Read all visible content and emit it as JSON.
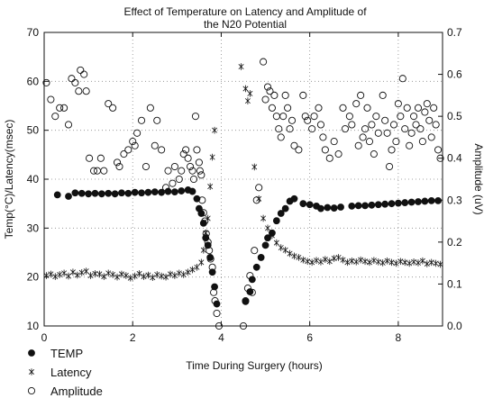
{
  "chart_data": {
    "type": "scatter",
    "title": "Effect of Temperature on Latency and Amplitude of",
    "subtitle": "the N20 Potential",
    "xlabel": "Time During Surgery (hours)",
    "ylabel_left": "Temp(°C)/Latency(msec)",
    "ylabel_right": "Amplitude (uV)",
    "xlim": [
      0,
      9
    ],
    "ylim_left": [
      10,
      70
    ],
    "ylim_right": [
      0.0,
      0.7
    ],
    "x_ticks": [
      "0",
      "2",
      "4",
      "6",
      "8"
    ],
    "y_left_ticks": [
      "10",
      "20",
      "30",
      "40",
      "50",
      "60",
      "70"
    ],
    "y_right_ticks": [
      "0.0",
      "0.1",
      "0.2",
      "0.3",
      "0.4",
      "0.5",
      "0.6",
      "0.7"
    ],
    "grid": "dotted",
    "legend_position": "bottom-left",
    "series": [
      {
        "name": "TEMP",
        "axis": "left",
        "marker": "filled-circle",
        "points": [
          [
            0.3,
            36.8
          ],
          [
            0.55,
            36.5
          ],
          [
            0.7,
            37.2
          ],
          [
            0.85,
            37.1
          ],
          [
            1.0,
            37.0
          ],
          [
            1.15,
            37.1
          ],
          [
            1.3,
            37.0
          ],
          [
            1.45,
            37.1
          ],
          [
            1.6,
            37.0
          ],
          [
            1.75,
            37.2
          ],
          [
            1.9,
            37.1
          ],
          [
            2.05,
            37.3
          ],
          [
            2.2,
            37.2
          ],
          [
            2.35,
            37.3
          ],
          [
            2.5,
            37.4
          ],
          [
            2.65,
            37.3
          ],
          [
            2.8,
            37.5
          ],
          [
            2.95,
            37.4
          ],
          [
            3.1,
            37.6
          ],
          [
            3.25,
            37.8
          ],
          [
            3.35,
            37.5
          ],
          [
            3.45,
            36.0
          ],
          [
            3.5,
            34.0
          ],
          [
            3.55,
            33.0
          ],
          [
            3.6,
            31.0
          ],
          [
            3.65,
            28.0
          ],
          [
            3.7,
            26.5
          ],
          [
            3.75,
            24.0
          ],
          [
            3.8,
            21.0
          ],
          [
            3.85,
            18.0
          ],
          [
            3.9,
            14.5
          ],
          [
            4.55,
            15.0
          ],
          [
            4.65,
            17.0
          ],
          [
            4.7,
            19.5
          ],
          [
            4.8,
            22.0
          ],
          [
            4.9,
            24.0
          ],
          [
            5.0,
            26.5
          ],
          [
            5.05,
            28.0
          ],
          [
            5.15,
            29.0
          ],
          [
            5.25,
            31.5
          ],
          [
            5.35,
            33.0
          ],
          [
            5.45,
            34.0
          ],
          [
            5.55,
            35.5
          ],
          [
            5.65,
            36.0
          ],
          [
            5.85,
            35.0
          ],
          [
            6.0,
            34.8
          ],
          [
            6.15,
            34.5
          ],
          [
            6.25,
            34.0
          ],
          [
            6.4,
            34.2
          ],
          [
            6.55,
            34.1
          ],
          [
            6.7,
            34.3
          ],
          [
            6.95,
            34.5
          ],
          [
            7.1,
            34.6
          ],
          [
            7.25,
            34.6
          ],
          [
            7.4,
            34.7
          ],
          [
            7.55,
            34.8
          ],
          [
            7.7,
            34.9
          ],
          [
            7.85,
            35.0
          ],
          [
            8.0,
            35.1
          ],
          [
            8.15,
            35.2
          ],
          [
            8.3,
            35.3
          ],
          [
            8.45,
            35.4
          ],
          [
            8.6,
            35.5
          ],
          [
            8.75,
            35.6
          ],
          [
            8.9,
            35.6
          ]
        ]
      },
      {
        "name": "Latency",
        "axis": "left",
        "marker": "asterisk",
        "points": [
          [
            0.05,
            20.3
          ],
          [
            0.15,
            20.6
          ],
          [
            0.25,
            20.1
          ],
          [
            0.35,
            20.5
          ],
          [
            0.45,
            20.8
          ],
          [
            0.55,
            20.2
          ],
          [
            0.65,
            21.0
          ],
          [
            0.75,
            20.4
          ],
          [
            0.85,
            20.9
          ],
          [
            0.95,
            21.2
          ],
          [
            1.05,
            20.3
          ],
          [
            1.15,
            20.7
          ],
          [
            1.25,
            20.6
          ],
          [
            1.35,
            20.1
          ],
          [
            1.45,
            20.8
          ],
          [
            1.55,
            20.5
          ],
          [
            1.65,
            20.0
          ],
          [
            1.75,
            20.6
          ],
          [
            1.85,
            20.3
          ],
          [
            1.95,
            19.8
          ],
          [
            2.05,
            20.2
          ],
          [
            2.15,
            20.7
          ],
          [
            2.25,
            20.1
          ],
          [
            2.35,
            20.4
          ],
          [
            2.45,
            19.9
          ],
          [
            2.55,
            20.5
          ],
          [
            2.65,
            20.2
          ],
          [
            2.75,
            20.0
          ],
          [
            2.85,
            20.6
          ],
          [
            2.95,
            20.3
          ],
          [
            3.05,
            20.8
          ],
          [
            3.15,
            20.5
          ],
          [
            3.25,
            21.0
          ],
          [
            3.35,
            21.5
          ],
          [
            3.45,
            22.0
          ],
          [
            3.55,
            23.0
          ],
          [
            3.6,
            25.5
          ],
          [
            3.65,
            29.0
          ],
          [
            3.7,
            32.0
          ],
          [
            3.75,
            38.5
          ],
          [
            3.8,
            44.5
          ],
          [
            3.85,
            50.0
          ],
          [
            4.45,
            63.0
          ],
          [
            4.55,
            58.5
          ],
          [
            4.6,
            56.0
          ],
          [
            4.65,
            57.5
          ],
          [
            4.75,
            42.5
          ],
          [
            4.85,
            36.0
          ],
          [
            4.95,
            32.0
          ],
          [
            5.05,
            30.0
          ],
          [
            5.15,
            28.5
          ],
          [
            5.25,
            27.0
          ],
          [
            5.35,
            26.0
          ],
          [
            5.45,
            25.5
          ],
          [
            5.55,
            24.8
          ],
          [
            5.65,
            24.3
          ],
          [
            5.75,
            24.0
          ],
          [
            5.85,
            23.5
          ],
          [
            5.95,
            23.2
          ],
          [
            6.05,
            23.0
          ],
          [
            6.15,
            23.4
          ],
          [
            6.25,
            23.1
          ],
          [
            6.35,
            23.6
          ],
          [
            6.45,
            23.2
          ],
          [
            6.55,
            23.8
          ],
          [
            6.65,
            24.0
          ],
          [
            6.75,
            23.5
          ],
          [
            6.85,
            23.0
          ],
          [
            6.95,
            23.3
          ],
          [
            7.05,
            23.1
          ],
          [
            7.15,
            23.5
          ],
          [
            7.25,
            23.2
          ],
          [
            7.35,
            23.0
          ],
          [
            7.45,
            23.4
          ],
          [
            7.55,
            23.1
          ],
          [
            7.65,
            22.9
          ],
          [
            7.75,
            23.3
          ],
          [
            7.85,
            23.0
          ],
          [
            7.95,
            22.8
          ],
          [
            8.05,
            23.2
          ],
          [
            8.15,
            23.0
          ],
          [
            8.25,
            22.8
          ],
          [
            8.35,
            23.1
          ],
          [
            8.45,
            22.9
          ],
          [
            8.55,
            23.3
          ],
          [
            8.65,
            22.7
          ],
          [
            8.75,
            23.0
          ],
          [
            8.85,
            22.8
          ],
          [
            8.95,
            22.6
          ]
        ]
      },
      {
        "name": "Amplitude",
        "axis": "right",
        "marker": "open-circle",
        "points": [
          [
            0.05,
            0.58
          ],
          [
            0.15,
            0.54
          ],
          [
            0.25,
            0.5
          ],
          [
            0.35,
            0.52
          ],
          [
            0.45,
            0.52
          ],
          [
            0.55,
            0.48
          ],
          [
            0.62,
            0.59
          ],
          [
            0.7,
            0.58
          ],
          [
            0.78,
            0.56
          ],
          [
            0.82,
            0.61
          ],
          [
            0.9,
            0.6
          ],
          [
            0.95,
            0.56
          ],
          [
            1.02,
            0.4
          ],
          [
            1.12,
            0.37
          ],
          [
            1.2,
            0.37
          ],
          [
            1.28,
            0.4
          ],
          [
            1.35,
            0.37
          ],
          [
            1.45,
            0.53
          ],
          [
            1.55,
            0.52
          ],
          [
            1.65,
            0.39
          ],
          [
            1.7,
            0.38
          ],
          [
            1.8,
            0.41
          ],
          [
            1.9,
            0.42
          ],
          [
            2.0,
            0.44
          ],
          [
            2.05,
            0.43
          ],
          [
            2.1,
            0.46
          ],
          [
            2.2,
            0.49
          ],
          [
            2.3,
            0.38
          ],
          [
            2.4,
            0.52
          ],
          [
            2.5,
            0.43
          ],
          [
            2.55,
            0.49
          ],
          [
            2.65,
            0.42
          ],
          [
            2.75,
            0.33
          ],
          [
            2.8,
            0.37
          ],
          [
            2.9,
            0.34
          ],
          [
            2.95,
            0.38
          ],
          [
            3.05,
            0.35
          ],
          [
            3.1,
            0.37
          ],
          [
            3.15,
            0.41
          ],
          [
            3.2,
            0.42
          ],
          [
            3.25,
            0.4
          ],
          [
            3.3,
            0.38
          ],
          [
            3.35,
            0.37
          ],
          [
            3.38,
            0.35
          ],
          [
            3.42,
            0.5
          ],
          [
            3.45,
            0.42
          ],
          [
            3.5,
            0.39
          ],
          [
            3.52,
            0.37
          ],
          [
            3.55,
            0.36
          ],
          [
            3.57,
            0.3
          ],
          [
            3.6,
            0.27
          ],
          [
            3.63,
            0.25
          ],
          [
            3.66,
            0.22
          ],
          [
            3.7,
            0.2
          ],
          [
            3.73,
            0.18
          ],
          [
            3.76,
            0.16
          ],
          [
            3.8,
            0.14
          ],
          [
            3.83,
            0.08
          ],
          [
            3.86,
            0.06
          ],
          [
            3.9,
            0.03
          ],
          [
            3.95,
            0.0
          ],
          [
            4.5,
            0.0
          ],
          [
            4.55,
            0.06
          ],
          [
            4.6,
            0.09
          ],
          [
            4.65,
            0.12
          ],
          [
            4.7,
            0.08
          ],
          [
            4.75,
            0.18
          ],
          [
            4.8,
            0.3
          ],
          [
            4.85,
            0.33
          ],
          [
            4.95,
            0.63
          ],
          [
            5.0,
            0.54
          ],
          [
            5.05,
            0.57
          ],
          [
            5.1,
            0.56
          ],
          [
            5.15,
            0.52
          ],
          [
            5.2,
            0.55
          ],
          [
            5.25,
            0.5
          ],
          [
            5.3,
            0.47
          ],
          [
            5.35,
            0.45
          ],
          [
            5.4,
            0.5
          ],
          [
            5.45,
            0.55
          ],
          [
            5.5,
            0.52
          ],
          [
            5.55,
            0.47
          ],
          [
            5.6,
            0.49
          ],
          [
            5.65,
            0.43
          ],
          [
            5.75,
            0.42
          ],
          [
            5.85,
            0.55
          ],
          [
            5.9,
            0.5
          ],
          [
            5.95,
            0.49
          ],
          [
            6.05,
            0.47
          ],
          [
            6.1,
            0.5
          ],
          [
            6.2,
            0.52
          ],
          [
            6.25,
            0.48
          ],
          [
            6.3,
            0.45
          ],
          [
            6.35,
            0.42
          ],
          [
            6.45,
            0.4
          ],
          [
            6.55,
            0.44
          ],
          [
            6.65,
            0.41
          ],
          [
            6.75,
            0.52
          ],
          [
            6.8,
            0.47
          ],
          [
            6.9,
            0.5
          ],
          [
            6.95,
            0.48
          ],
          [
            7.05,
            0.53
          ],
          [
            7.1,
            0.43
          ],
          [
            7.15,
            0.55
          ],
          [
            7.2,
            0.45
          ],
          [
            7.25,
            0.47
          ],
          [
            7.3,
            0.52
          ],
          [
            7.35,
            0.44
          ],
          [
            7.4,
            0.48
          ],
          [
            7.45,
            0.41
          ],
          [
            7.5,
            0.5
          ],
          [
            7.55,
            0.46
          ],
          [
            7.65,
            0.55
          ],
          [
            7.7,
            0.49
          ],
          [
            7.75,
            0.46
          ],
          [
            7.8,
            0.38
          ],
          [
            7.85,
            0.42
          ],
          [
            7.9,
            0.48
          ],
          [
            7.95,
            0.44
          ],
          [
            8.0,
            0.53
          ],
          [
            8.05,
            0.5
          ],
          [
            8.1,
            0.59
          ],
          [
            8.15,
            0.47
          ],
          [
            8.2,
            0.52
          ],
          [
            8.25,
            0.43
          ],
          [
            8.3,
            0.46
          ],
          [
            8.35,
            0.5
          ],
          [
            8.4,
            0.48
          ],
          [
            8.45,
            0.52
          ],
          [
            8.5,
            0.47
          ],
          [
            8.55,
            0.44
          ],
          [
            8.6,
            0.51
          ],
          [
            8.65,
            0.53
          ],
          [
            8.7,
            0.49
          ],
          [
            8.75,
            0.45
          ],
          [
            8.8,
            0.52
          ],
          [
            8.85,
            0.48
          ],
          [
            8.9,
            0.42
          ],
          [
            8.95,
            0.4
          ]
        ]
      }
    ]
  }
}
